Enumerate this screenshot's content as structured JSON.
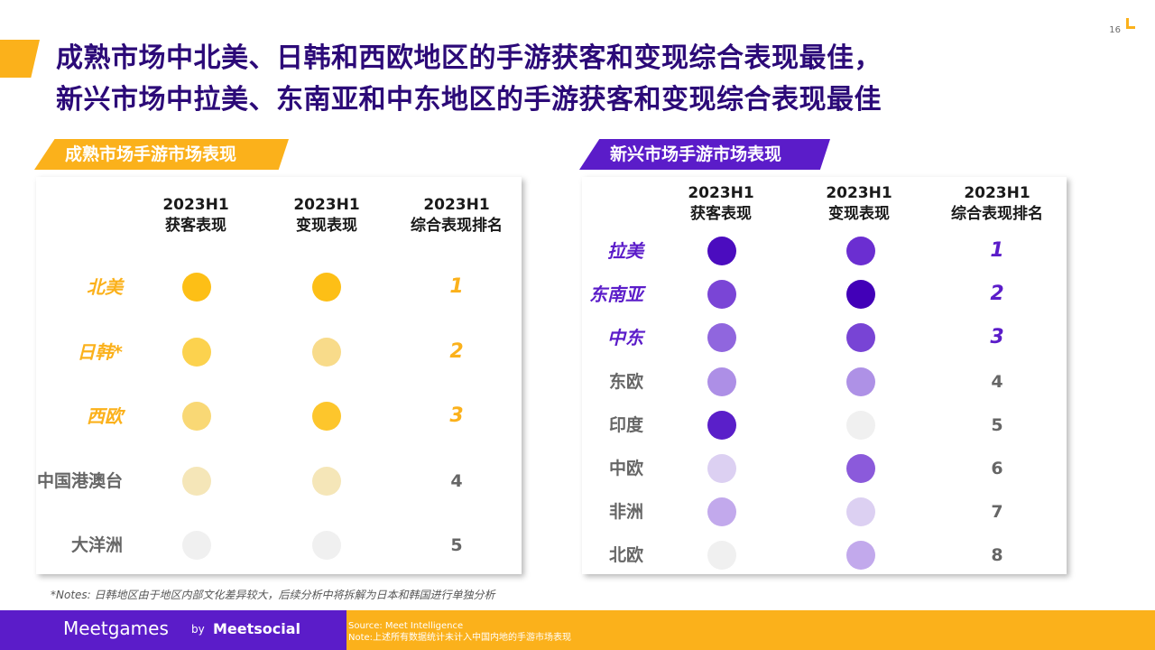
{
  "page_number": "16",
  "title": {
    "line1": "成熟市场中北美、日韩和西欧地区的手游获客和变现综合表现最佳，",
    "line2": "新兴市场中拉美、东南亚和中东地区的手游获客和变现综合表现最佳"
  },
  "colors": {
    "yellow": "#FBB11B",
    "purple": "#5B1CC9",
    "navy": "#2C0A78"
  },
  "mature": {
    "tag": "成熟市场手游市场表现",
    "headers": [
      {
        "l1": "2023H1",
        "l2": "获客表现"
      },
      {
        "l1": "2023H1",
        "l2": "变现表现"
      },
      {
        "l1": "2023H1",
        "l2": "综合表现排名"
      }
    ],
    "rows": [
      {
        "label": "北美",
        "rank": "1",
        "highlight": true,
        "acq": "#FDBF16",
        "mon": "#FDBF16"
      },
      {
        "label": "日韩*",
        "rank": "2",
        "highlight": true,
        "acq": "#FCD24E",
        "mon": "#F8DB8A"
      },
      {
        "label": "西欧",
        "rank": "3",
        "highlight": true,
        "acq": "#F9D875",
        "mon": "#FDC62C"
      },
      {
        "label": "中国港澳台",
        "rank": "4",
        "highlight": false,
        "acq": "#F5E6B8",
        "mon": "#F5E6B8"
      },
      {
        "label": "大洋洲",
        "rank": "5",
        "highlight": false,
        "acq": "#F0F0F0",
        "mon": "#F0F0F0"
      }
    ]
  },
  "emerging": {
    "tag": "新兴市场手游市场表现",
    "headers": [
      {
        "l1": "2023H1",
        "l2": "获客表现"
      },
      {
        "l1": "2023H1",
        "l2": "变现表现"
      },
      {
        "l1": "2023H1",
        "l2": "综合表现排名"
      }
    ],
    "rows": [
      {
        "label": "拉美",
        "rank": "1",
        "highlight": true,
        "acq": "#4B0CBF",
        "mon": "#6B2ED1"
      },
      {
        "label": "东南亚",
        "rank": "2",
        "highlight": true,
        "acq": "#7A45D6",
        "mon": "#4200B8"
      },
      {
        "label": "中东",
        "rank": "3",
        "highlight": true,
        "acq": "#9066DE",
        "mon": "#7844D5"
      },
      {
        "label": "东欧",
        "rank": "4",
        "highlight": false,
        "acq": "#AD8FE6",
        "mon": "#AE91E6"
      },
      {
        "label": "印度",
        "rank": "5",
        "highlight": false,
        "acq": "#5A1FC9",
        "mon": "#F0F0F0"
      },
      {
        "label": "中欧",
        "rank": "6",
        "highlight": false,
        "acq": "#DCD0F2",
        "mon": "#8B5ADB"
      },
      {
        "label": "非洲",
        "rank": "7",
        "highlight": false,
        "acq": "#C2A9EC",
        "mon": "#DCD0F2"
      },
      {
        "label": "北欧",
        "rank": "8",
        "highlight": false,
        "acq": "#F0F0F0",
        "mon": "#C2A9EC"
      }
    ]
  },
  "notes": "*Notes: 日韩地区由于地区内部文化差异较大，后续分析中将拆解为日本和韩国进行单独分析",
  "footer": {
    "brand": "Meetgames",
    "by": "by",
    "brand2": "Meetsocial",
    "source": "Source: Meet Intelligence",
    "note": "Note:上述所有数据统计未计入中国内地的手游市场表现"
  }
}
